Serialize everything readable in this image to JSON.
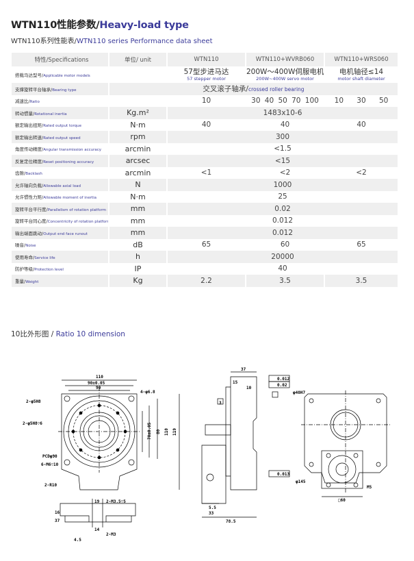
{
  "title": {
    "cn": "WTN110性能参数/",
    "en": "Heavy-load type"
  },
  "subtitle": {
    "cn": "WTN110系列性能表/",
    "en": "WTN110 series Performance data sheet"
  },
  "table": {
    "headers": [
      "特性/Specifications",
      "单位/ unit",
      "WTN110",
      "WTN110+WVRB060",
      "WTN110+WRS060"
    ],
    "motor": {
      "cn": "搭载马达型号/",
      "en": "Applicable motor models",
      "cols": [
        {
          "l1": "57型步进马达",
          "l2": "57 stepper motor"
        },
        {
          "l1": "200W～400W伺服电机",
          "l2": "200W~400W servo motor"
        },
        {
          "l1": "电机轴径≤14",
          "l2": "motor shaft diameter"
        }
      ]
    },
    "bearing": {
      "cn": "支撑旋转平台轴承/",
      "en": "Bearing type",
      "l1": "交叉滚子轴承/",
      "l2": "crossed roller bearing"
    },
    "ratio": {
      "cn": "减速比/",
      "en": "Ratio",
      "wtn": [
        "10"
      ],
      "wvrb": [
        "30",
        "40",
        "50",
        "70",
        "100"
      ],
      "wrs": [
        "10",
        "30",
        "50"
      ]
    },
    "rows": [
      {
        "cn": "转动惯量/",
        "en": "Rotational inertia",
        "unit": "Kg.m²",
        "all": "1483x10-6"
      },
      {
        "cn": "额定输出扭矩/",
        "en": "Rated output torque",
        "unit": "N·m",
        "v": [
          "40",
          "40",
          "40"
        ]
      },
      {
        "cn": "额定输出转速/",
        "en": "Rated output speed",
        "unit": "rpm",
        "all": "300"
      },
      {
        "cn": "角度传动精度/",
        "en": "Angular transmission accuracy",
        "unit": "arcmin",
        "all": "<1.5"
      },
      {
        "cn": "反复定位精度/",
        "en": "Reset positioning accuracy",
        "unit": "arcsec",
        "all": "<15"
      },
      {
        "cn": "齿隙/",
        "en": "Backlash",
        "unit": "arcmin",
        "v": [
          "<1",
          "<2",
          "<2"
        ]
      },
      {
        "cn": "允许轴向负载/",
        "en": "Allowable axial load",
        "unit": "N",
        "all": "1000"
      },
      {
        "cn": "允许惯性力矩/",
        "en": "Allowable moment of inertia",
        "unit": "N·m",
        "all": "25"
      },
      {
        "cn": "旋转平台平行度/",
        "en": "Parallelism of rotation platform",
        "unit": "mm",
        "all": "0.02"
      },
      {
        "cn": "旋转平台同心度/",
        "en": "Concentricity of rotation platform",
        "unit": "mm",
        "all": "0.012"
      },
      {
        "cn": "输出端面跳动/",
        "en": "Output end face runout",
        "unit": "mm",
        "all": "0.012"
      },
      {
        "cn": "噪音/",
        "en": "Noise",
        "unit": "dB",
        "v": [
          "65",
          "60",
          "65"
        ]
      },
      {
        "cn": "使用寿命/",
        "en": "Service life",
        "unit": "h",
        "all": "20000"
      },
      {
        "cn": "防护等级/",
        "en": "Protection level",
        "unit": "IP",
        "all": "40"
      },
      {
        "cn": "重量/",
        "en": "Weight",
        "unit": "Kg",
        "v": [
          "2.2",
          "3.5",
          "3.5"
        ]
      }
    ]
  },
  "dimension": {
    "cn": "10比外形图 / ",
    "en": "Ratio 10 dimension"
  },
  "drawing": {
    "labels": [
      "110",
      "90±0.05",
      "90",
      "4-φ6.8",
      "70±0.05",
      "80",
      "110",
      "119",
      "19",
      "2-M3.5▽5",
      "16",
      "37",
      "14",
      "4.5",
      "37",
      "15",
      "10",
      "3",
      "0.012",
      "0.02",
      "33",
      "5.5",
      "78.5",
      "0.013",
      "□60"
    ]
  }
}
